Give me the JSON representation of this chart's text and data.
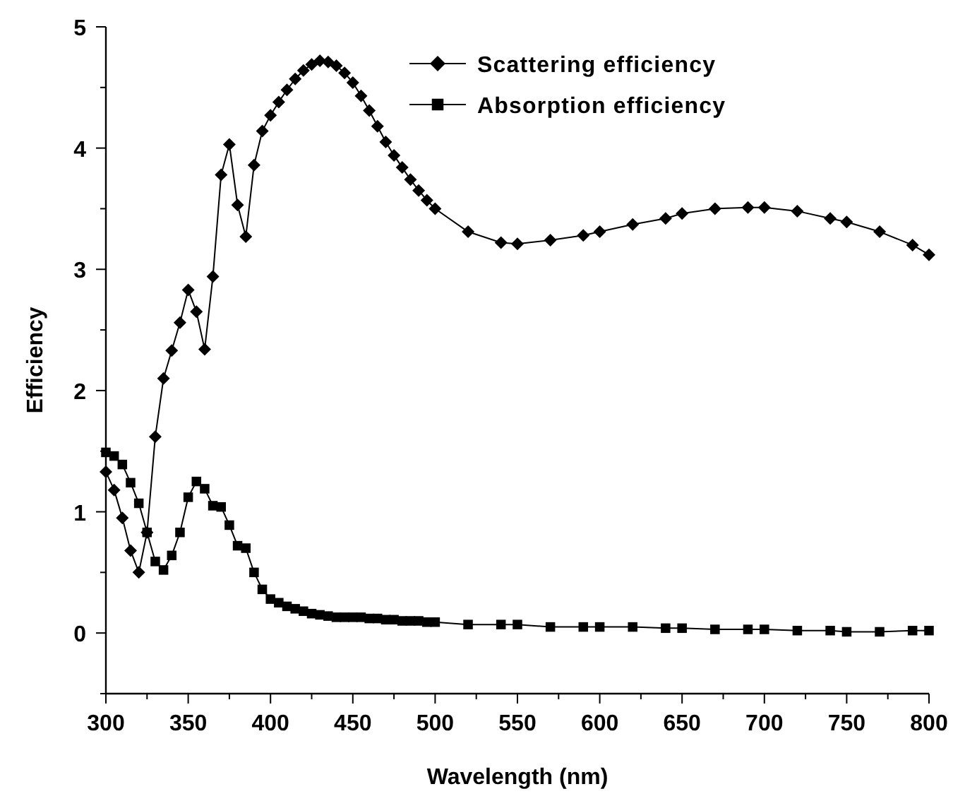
{
  "chart_data": {
    "type": "line",
    "xlabel": "Wavelength (nm)",
    "ylabel": "Efficiency",
    "xlim": [
      300,
      800
    ],
    "ylim": [
      -0.5,
      5
    ],
    "xticks": [
      300,
      {
        "value": 325,
        "label": null
      },
      350,
      {
        "value": 375,
        "label": null
      },
      400,
      {
        "value": 425,
        "label": null
      },
      450,
      {
        "value": 475,
        "label": null
      },
      500,
      {
        "value": 525,
        "label": null
      },
      550,
      {
        "value": 575,
        "label": null
      },
      600,
      {
        "value": 625,
        "label": null
      },
      650,
      {
        "value": 675,
        "label": null
      },
      700,
      {
        "value": 725,
        "label": null
      },
      750,
      {
        "value": 775,
        "label": null
      },
      800
    ],
    "yticks": [
      {
        "value": -0.5,
        "label": null
      },
      0,
      {
        "value": 0.5,
        "label": null
      },
      1,
      {
        "value": 1.5,
        "label": null
      },
      2,
      {
        "value": 2.5,
        "label": null
      },
      3,
      {
        "value": 3.5,
        "label": null
      },
      4,
      {
        "value": 4.5,
        "label": null
      },
      5
    ],
    "legend": "top right",
    "line_style": "solid",
    "grid": false,
    "series": [
      {
        "name": "Scattering efficiency",
        "color": "#000000",
        "marker": "diamond",
        "x": [
          300,
          305,
          310,
          315,
          320,
          325,
          330,
          335,
          340,
          345,
          350,
          355,
          360,
          365,
          370,
          375,
          380,
          385,
          390,
          395,
          400,
          405,
          410,
          415,
          420,
          425,
          430,
          435,
          440,
          445,
          450,
          455,
          460,
          465,
          470,
          475,
          480,
          485,
          490,
          495,
          500,
          520,
          540,
          550,
          570,
          590,
          600,
          620,
          640,
          650,
          670,
          690,
          700,
          720,
          740,
          750,
          770,
          790,
          800
        ],
        "values": [
          1.33,
          1.18,
          0.95,
          0.68,
          0.5,
          0.83,
          1.62,
          2.1,
          2.33,
          2.56,
          2.83,
          2.65,
          2.34,
          2.94,
          3.78,
          4.03,
          3.53,
          3.27,
          3.86,
          4.14,
          4.27,
          4.38,
          4.48,
          4.57,
          4.64,
          4.69,
          4.72,
          4.71,
          4.68,
          4.62,
          4.54,
          4.43,
          4.31,
          4.18,
          4.05,
          3.94,
          3.84,
          3.74,
          3.65,
          3.57,
          3.5,
          3.31,
          3.22,
          3.21,
          3.24,
          3.28,
          3.31,
          3.37,
          3.42,
          3.46,
          3.5,
          3.51,
          3.51,
          3.48,
          3.42,
          3.39,
          3.31,
          3.2,
          3.12
        ]
      },
      {
        "name": "Absorption efficiency",
        "color": "#000000",
        "marker": "square",
        "x": [
          300,
          305,
          310,
          315,
          320,
          325,
          330,
          335,
          340,
          345,
          350,
          355,
          360,
          365,
          370,
          375,
          380,
          385,
          390,
          395,
          400,
          405,
          410,
          415,
          420,
          425,
          430,
          435,
          440,
          445,
          450,
          455,
          460,
          465,
          470,
          475,
          480,
          485,
          490,
          495,
          500,
          520,
          540,
          550,
          570,
          590,
          600,
          620,
          640,
          650,
          670,
          690,
          700,
          720,
          740,
          750,
          770,
          790,
          800
        ],
        "values": [
          1.49,
          1.46,
          1.39,
          1.24,
          1.07,
          0.83,
          0.59,
          0.52,
          0.64,
          0.83,
          1.12,
          1.25,
          1.19,
          1.05,
          1.04,
          0.89,
          0.72,
          0.7,
          0.5,
          0.36,
          0.28,
          0.25,
          0.22,
          0.2,
          0.18,
          0.16,
          0.15,
          0.14,
          0.13,
          0.13,
          0.13,
          0.13,
          0.12,
          0.12,
          0.11,
          0.11,
          0.1,
          0.1,
          0.1,
          0.09,
          0.09,
          0.07,
          0.07,
          0.07,
          0.05,
          0.05,
          0.05,
          0.05,
          0.04,
          0.04,
          0.03,
          0.03,
          0.03,
          0.02,
          0.02,
          0.01,
          0.01,
          0.02,
          0.02
        ]
      }
    ]
  }
}
